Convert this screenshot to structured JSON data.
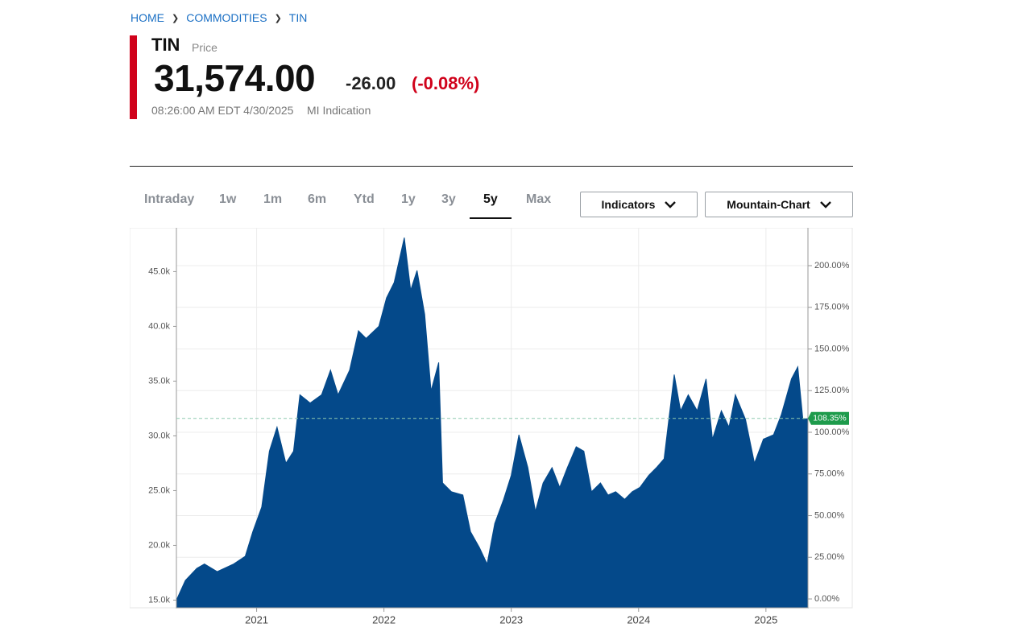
{
  "breadcrumbs": [
    "HOME",
    "COMMODITIES",
    "TIN"
  ],
  "quote": {
    "symbol": "TIN",
    "price_label": "Price",
    "price": "31,574.00",
    "change": "-26.00",
    "change_percent": "(-0.08%)",
    "timestamp": "08:26:00 AM EDT 4/30/2025",
    "source": "MI Indication"
  },
  "tabs": [
    "Intraday",
    "1w",
    "1m",
    "6m",
    "Ytd",
    "1y",
    "3y",
    "5y",
    "Max"
  ],
  "buttons": [
    "Indicators",
    "Mountain-Chart"
  ],
  "chart_data": {
    "type": "area",
    "x": [
      2020.37,
      2020.44,
      2020.53,
      2020.59,
      2020.69,
      2020.82,
      2020.91,
      2020.97,
      2021.04,
      2021.1,
      2021.16,
      2021.23,
      2021.29,
      2021.34,
      2021.42,
      2021.51,
      2021.58,
      2021.64,
      2021.73,
      2021.8,
      2021.86,
      2021.96,
      2022.02,
      2022.08,
      2022.16,
      2022.21,
      2022.26,
      2022.32,
      2022.37,
      2022.43,
      2022.46,
      2022.53,
      2022.62,
      2022.68,
      2022.75,
      2022.81,
      2022.87,
      2022.94,
      2023.0,
      2023.06,
      2023.13,
      2023.19,
      2023.25,
      2023.32,
      2023.38,
      2023.44,
      2023.51,
      2023.57,
      2023.63,
      2023.7,
      2023.76,
      2023.82,
      2023.89,
      2023.95,
      2024.01,
      2024.08,
      2024.14,
      2024.2,
      2024.28,
      2024.33,
      2024.39,
      2024.46,
      2024.53,
      2024.58,
      2024.65,
      2024.71,
      2024.76,
      2024.84,
      2024.91,
      2024.98,
      2025.06,
      2025.12,
      2025.2,
      2025.25,
      2025.29,
      2025.33
    ],
    "series": [
      {
        "name": "TIN",
        "color": "#04498a",
        "values": [
          15000,
          16800,
          17900,
          18300,
          17600,
          18300,
          19000,
          21250,
          23500,
          28600,
          30800,
          27500,
          28600,
          33750,
          33000,
          33750,
          36000,
          33750,
          36000,
          39600,
          38900,
          40000,
          42600,
          44000,
          48100,
          43300,
          45100,
          41100,
          34100,
          36700,
          25700,
          24900,
          24600,
          21250,
          19800,
          18300,
          22000,
          24200,
          26400,
          30100,
          27100,
          23100,
          25700,
          27100,
          25300,
          27100,
          29000,
          28600,
          24900,
          25700,
          24600,
          24900,
          24200,
          24900,
          25300,
          26400,
          27100,
          27900,
          35600,
          32300,
          33750,
          32300,
          35200,
          29700,
          32300,
          30800,
          33750,
          31500,
          27500,
          29700,
          30100,
          31900,
          35200,
          36300,
          31500,
          31574
        ]
      }
    ],
    "xlim": [
      2020.37,
      2025.33
    ],
    "xticks": [
      2021,
      2022,
      2023,
      2024,
      2025
    ],
    "ylim": [
      14300,
      49000
    ],
    "yticks": [
      {
        "value": 15000,
        "label": "15.0k"
      },
      {
        "value": 20000,
        "label": "20.0k"
      },
      {
        "value": 25000,
        "label": "25.0k"
      },
      {
        "value": 30000,
        "label": "30.0k"
      },
      {
        "value": 35000,
        "label": "35.0k"
      },
      {
        "value": 40000,
        "label": "40.0k"
      },
      {
        "value": 45000,
        "label": "45.0k"
      }
    ],
    "y2lim": [
      -5.3,
      222.7
    ],
    "y2ticks": [
      {
        "value": 0,
        "label": "0.00%"
      },
      {
        "value": 25,
        "label": "25.00%"
      },
      {
        "value": 50,
        "label": "50.00%"
      },
      {
        "value": 75,
        "label": "75.00%"
      },
      {
        "value": 100,
        "label": "100.00%"
      },
      {
        "value": 125,
        "label": "125.00%"
      },
      {
        "value": 150,
        "label": "150.00%"
      },
      {
        "value": 175,
        "label": "175.00%"
      },
      {
        "value": 200,
        "label": "200.00%"
      }
    ],
    "current": {
      "value": 108.35,
      "label": "108.35%",
      "axis": "y2",
      "color": "#1e9b4c"
    },
    "grid": true
  }
}
